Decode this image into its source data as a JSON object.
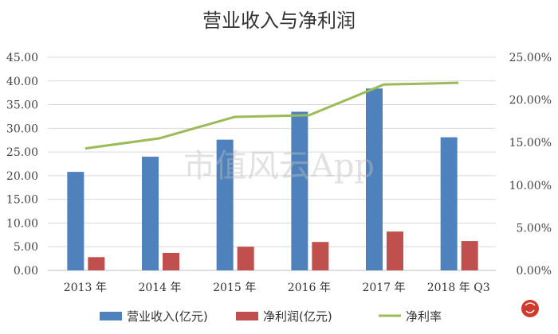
{
  "chart_data": {
    "type": "bar",
    "title": "营业收入与净利润",
    "categories": [
      "2013 年",
      "2014 年",
      "2015 年",
      "2016 年",
      "2017 年",
      "2018 年 Q3"
    ],
    "series": [
      {
        "name": "营业收入(亿元)",
        "type": "bar",
        "axis": "left",
        "color": "#4f81bd",
        "values": [
          20.8,
          24.0,
          27.6,
          33.5,
          38.4,
          28.1
        ]
      },
      {
        "name": "净利润(亿元)",
        "type": "bar",
        "axis": "left",
        "color": "#c0504d",
        "values": [
          2.8,
          3.7,
          5.0,
          6.0,
          8.2,
          6.2
        ]
      },
      {
        "name": "净利率",
        "type": "line",
        "axis": "right",
        "color": "#9bbb59",
        "values": [
          14.3,
          15.5,
          18.0,
          18.2,
          21.8,
          22.0
        ]
      }
    ],
    "y_left": {
      "min": 0,
      "max": 45,
      "step": 5,
      "ticks": [
        "0.00",
        "5.00",
        "10.00",
        "15.00",
        "20.00",
        "25.00",
        "30.00",
        "35.00",
        "40.00",
        "45.00"
      ]
    },
    "y_right": {
      "min": 0,
      "max": 25,
      "step": 5,
      "ticks": [
        "0.00%",
        "5.00%",
        "10.00%",
        "15.00%",
        "20.00%",
        "25.00%"
      ]
    },
    "grid": true,
    "legend_position": "bottom",
    "watermark": "市值风云App"
  }
}
